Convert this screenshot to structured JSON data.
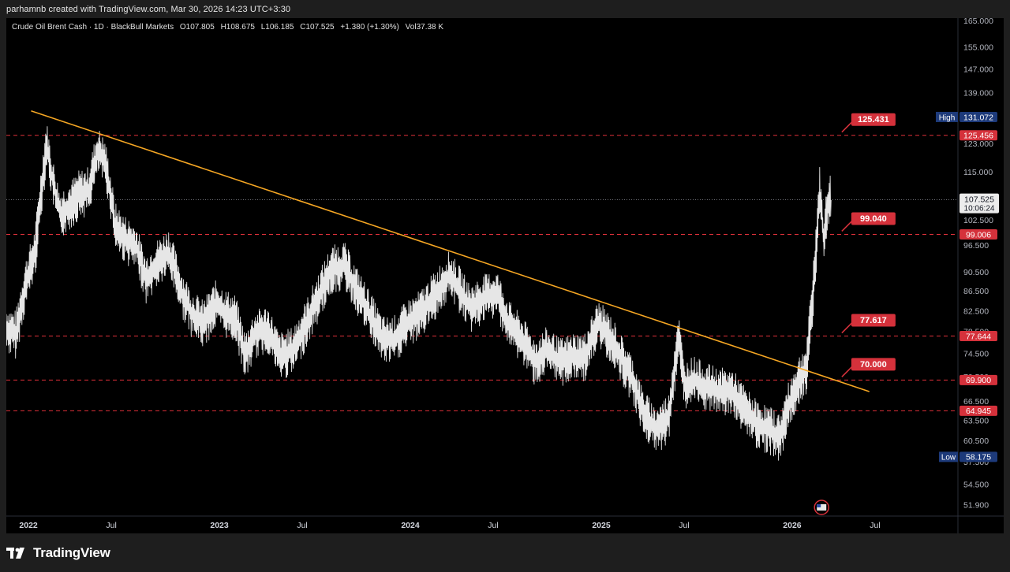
{
  "caption": "parhamnb created with TradingView.com, Mar 30, 2026 14:23 UTC+3:30",
  "legend": {
    "symbol": "Crude Oil Brent Cash · 1D · BlackBull Markets",
    "open": "O107.805",
    "high": "H108.675",
    "low": "L106.185",
    "close": "C107.525",
    "change": "+1.380 (+1.30%)",
    "volume": "Vol37.38 K"
  },
  "brand": "TradingView",
  "chart_data": {
    "type": "line",
    "price_ticks": [
      "165.000",
      "155.000",
      "147.000",
      "139.000",
      "123.000",
      "115.000",
      "102.500",
      "96.500",
      "90.500",
      "86.500",
      "82.500",
      "78.500",
      "74.500",
      "70.500",
      "66.500",
      "63.500",
      "60.500",
      "57.500",
      "54.500",
      "51.900"
    ],
    "time_ticks": [
      {
        "label": "2022",
        "t": 2022.0,
        "bold": true
      },
      {
        "label": "Jul",
        "t": 2022.5,
        "bold": false
      },
      {
        "label": "2023",
        "t": 2023.0,
        "bold": true
      },
      {
        "label": "Jul",
        "t": 2023.5,
        "bold": false
      },
      {
        "label": "2024",
        "t": 2024.0,
        "bold": true
      },
      {
        "label": "Jul",
        "t": 2024.5,
        "bold": false
      },
      {
        "label": "2025",
        "t": 2025.0,
        "bold": true
      },
      {
        "label": "Jul",
        "t": 2025.5,
        "bold": false
      },
      {
        "label": "2026",
        "t": 2026.0,
        "bold": true
      },
      {
        "label": "Jul",
        "t": 2026.5,
        "bold": false
      }
    ],
    "x_range": [
      2021.95,
      2026.93
    ],
    "y_range": [
      50.5,
      166
    ],
    "y_scale": "log",
    "price_series": [
      [
        2021.95,
        79
      ],
      [
        2022.0,
        78
      ],
      [
        2022.05,
        88
      ],
      [
        2022.1,
        95
      ],
      [
        2022.16,
        123
      ],
      [
        2022.19,
        113
      ],
      [
        2022.23,
        104
      ],
      [
        2022.28,
        106
      ],
      [
        2022.33,
        109
      ],
      [
        2022.38,
        110
      ],
      [
        2022.43,
        121
      ],
      [
        2022.47,
        117
      ],
      [
        2022.52,
        101
      ],
      [
        2022.57,
        98
      ],
      [
        2022.63,
        96
      ],
      [
        2022.68,
        89
      ],
      [
        2022.73,
        92
      ],
      [
        2022.8,
        95
      ],
      [
        2022.87,
        86
      ],
      [
        2022.92,
        82
      ],
      [
        2022.98,
        80
      ],
      [
        2023.05,
        84
      ],
      [
        2023.1,
        82
      ],
      [
        2023.15,
        81
      ],
      [
        2023.2,
        74
      ],
      [
        2023.25,
        78
      ],
      [
        2023.32,
        79
      ],
      [
        2023.38,
        74
      ],
      [
        2023.45,
        75
      ],
      [
        2023.52,
        80
      ],
      [
        2023.58,
        85
      ],
      [
        2023.65,
        91
      ],
      [
        2023.72,
        92
      ],
      [
        2023.78,
        87
      ],
      [
        2023.85,
        82
      ],
      [
        2023.92,
        77
      ],
      [
        2023.98,
        77
      ],
      [
        2024.05,
        80
      ],
      [
        2024.12,
        82
      ],
      [
        2024.2,
        86
      ],
      [
        2024.27,
        90
      ],
      [
        2024.32,
        87
      ],
      [
        2024.38,
        83
      ],
      [
        2024.45,
        85
      ],
      [
        2024.52,
        86
      ],
      [
        2024.58,
        80
      ],
      [
        2024.65,
        77
      ],
      [
        2024.72,
        73
      ],
      [
        2024.78,
        75
      ],
      [
        2024.85,
        73
      ],
      [
        2024.92,
        74
      ],
      [
        2024.98,
        74
      ],
      [
        2025.05,
        80
      ],
      [
        2025.12,
        77
      ],
      [
        2025.18,
        73
      ],
      [
        2025.23,
        70
      ],
      [
        2025.28,
        65
      ],
      [
        2025.35,
        62
      ],
      [
        2025.42,
        64
      ],
      [
        2025.47,
        78
      ],
      [
        2025.5,
        69
      ],
      [
        2025.55,
        70
      ],
      [
        2025.6,
        69
      ],
      [
        2025.68,
        68
      ],
      [
        2025.75,
        68
      ],
      [
        2025.82,
        65
      ],
      [
        2025.88,
        63
      ],
      [
        2025.95,
        62
      ],
      [
        2026.0,
        61
      ],
      [
        2026.05,
        66
      ],
      [
        2026.1,
        70
      ],
      [
        2026.14,
        72
      ],
      [
        2026.17,
        84
      ],
      [
        2026.19,
        96
      ],
      [
        2026.21,
        110
      ],
      [
        2026.23,
        98
      ],
      [
        2026.26,
        109
      ],
      [
        2026.27,
        107.5
      ]
    ],
    "trendline": {
      "from": [
        2022.08,
        133.0
      ],
      "to": [
        2026.47,
        68.0
      ],
      "color": "#f5a623"
    },
    "horizontal_levels": [
      {
        "value": 125.456,
        "label": "125.456"
      },
      {
        "value": 99.006,
        "label": "99.006"
      },
      {
        "value": 77.644,
        "label": "77.644"
      },
      {
        "value": 69.9,
        "label": "69.900"
      },
      {
        "value": 64.945,
        "label": "64.945"
      }
    ],
    "callouts": [
      {
        "price": 125.456,
        "label": "125.431"
      },
      {
        "price": 99.006,
        "label": "99.040"
      },
      {
        "price": 77.644,
        "label": "77.617"
      },
      {
        "price": 69.9,
        "label": "70.000"
      }
    ],
    "last_price": {
      "value": 107.525,
      "label": "107.525",
      "countdown": "10:06:24"
    },
    "high_marker": {
      "tag": "High",
      "value": 131.072,
      "label": "131.072"
    },
    "low_marker": {
      "tag": "Low",
      "value": 58.175,
      "label": "58.175"
    },
    "event_icon": {
      "t": 2026.22,
      "name": "us-flag-icon"
    },
    "colors": {
      "background": "#000000",
      "price": "#e6e6e6",
      "level": "#e0313a",
      "trend": "#f5a623",
      "label_red": "#d5313b",
      "high_low": "#1d3a7a",
      "grid_text": "#b2b5be"
    }
  }
}
